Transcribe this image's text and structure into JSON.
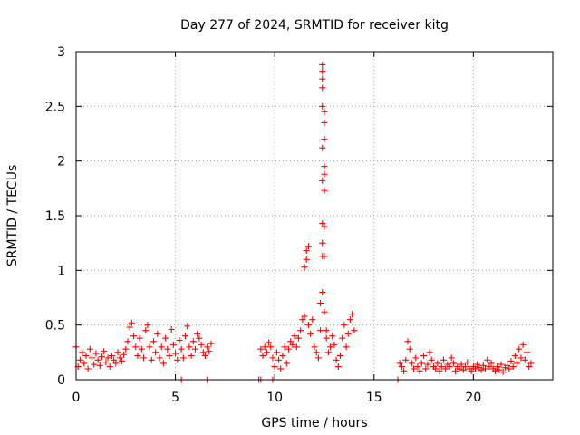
{
  "chart_data": {
    "type": "scatter",
    "title": "Day 277 of 2024, SRMTID for receiver kitg",
    "xlabel": "GPS time / hours",
    "ylabel": "SRMTID / TECUs",
    "xlim": [
      0,
      24
    ],
    "ylim": [
      0,
      3
    ],
    "xticks": [
      0,
      5,
      10,
      15,
      20
    ],
    "xtick_labels": [
      "0",
      "5",
      "10",
      "15",
      "20"
    ],
    "yticks": [
      0,
      0.5,
      1,
      1.5,
      2,
      2.5,
      3
    ],
    "ytick_labels": [
      "0",
      "0.5",
      "1",
      "1.5",
      "2",
      "2.5",
      "3"
    ],
    "grid": true,
    "marker": "+",
    "series": [
      {
        "name": "SRMTID",
        "color": "#ff0000",
        "points": [
          [
            0.0,
            0.3
          ],
          [
            0.1,
            0.12
          ],
          [
            0.2,
            0.18
          ],
          [
            0.3,
            0.25
          ],
          [
            0.4,
            0.15
          ],
          [
            0.5,
            0.22
          ],
          [
            0.6,
            0.1
          ],
          [
            0.7,
            0.28
          ],
          [
            0.8,
            0.2
          ],
          [
            0.9,
            0.14
          ],
          [
            1.0,
            0.24
          ],
          [
            1.1,
            0.18
          ],
          [
            1.2,
            0.13
          ],
          [
            1.3,
            0.21
          ],
          [
            1.4,
            0.26
          ],
          [
            1.5,
            0.16
          ],
          [
            1.6,
            0.2
          ],
          [
            1.7,
            0.12
          ],
          [
            1.8,
            0.22
          ],
          [
            1.9,
            0.18
          ],
          [
            2.0,
            0.15
          ],
          [
            2.1,
            0.25
          ],
          [
            2.2,
            0.2
          ],
          [
            2.3,
            0.17
          ],
          [
            2.4,
            0.23
          ],
          [
            2.5,
            0.28
          ],
          [
            2.6,
            0.35
          ],
          [
            2.7,
            0.48
          ],
          [
            2.8,
            0.52
          ],
          [
            2.9,
            0.4
          ],
          [
            3.0,
            0.3
          ],
          [
            3.1,
            0.22
          ],
          [
            3.2,
            0.38
          ],
          [
            3.3,
            0.28
          ],
          [
            3.4,
            0.2
          ],
          [
            3.5,
            0.45
          ],
          [
            3.6,
            0.5
          ],
          [
            3.7,
            0.3
          ],
          [
            3.8,
            0.18
          ],
          [
            3.9,
            0.35
          ],
          [
            4.0,
            0.25
          ],
          [
            4.1,
            0.42
          ],
          [
            4.2,
            0.2
          ],
          [
            4.3,
            0.3
          ],
          [
            4.4,
            0.15
          ],
          [
            4.5,
            0.38
          ],
          [
            4.6,
            0.28
          ],
          [
            4.7,
            0.22
          ],
          [
            4.8,
            0.46
          ],
          [
            4.9,
            0.32
          ],
          [
            5.0,
            0.24
          ],
          [
            5.1,
            0.18
          ],
          [
            5.2,
            0.36
          ],
          [
            5.3,
            0.28
          ],
          [
            5.4,
            0.2
          ],
          [
            5.5,
            0.4
          ],
          [
            5.6,
            0.49
          ],
          [
            5.7,
            0.3
          ],
          [
            5.8,
            0.22
          ],
          [
            5.9,
            0.35
          ],
          [
            6.0,
            0.28
          ],
          [
            6.1,
            0.42
          ],
          [
            6.2,
            0.38
          ],
          [
            6.3,
            0.32
          ],
          [
            6.4,
            0.25
          ],
          [
            6.5,
            0.22
          ],
          [
            6.6,
            0.3
          ],
          [
            6.7,
            0.26
          ],
          [
            6.8,
            0.33
          ],
          [
            9.3,
            0.28
          ],
          [
            9.4,
            0.22
          ],
          [
            9.5,
            0.3
          ],
          [
            9.6,
            0.25
          ],
          [
            9.7,
            0.34
          ],
          [
            9.8,
            0.3
          ],
          [
            9.9,
            0.2
          ],
          [
            10.0,
            0.12
          ],
          [
            10.1,
            0.25
          ],
          [
            10.2,
            0.18
          ],
          [
            10.3,
            0.1
          ],
          [
            10.4,
            0.22
          ],
          [
            10.5,
            0.3
          ],
          [
            10.6,
            0.15
          ],
          [
            10.7,
            0.28
          ],
          [
            10.8,
            0.35
          ],
          [
            10.9,
            0.32
          ],
          [
            11.0,
            0.4
          ],
          [
            11.1,
            0.3
          ],
          [
            11.2,
            0.38
          ],
          [
            11.3,
            0.45
          ],
          [
            11.4,
            0.55
          ],
          [
            11.5,
            0.58
          ],
          [
            11.5,
            1.03
          ],
          [
            11.6,
            1.1
          ],
          [
            11.6,
            1.18
          ],
          [
            11.7,
            1.22
          ],
          [
            11.7,
            0.5
          ],
          [
            11.8,
            0.42
          ],
          [
            11.9,
            0.55
          ],
          [
            12.0,
            0.3
          ],
          [
            12.1,
            0.25
          ],
          [
            12.2,
            0.2
          ],
          [
            12.3,
            0.45
          ],
          [
            12.3,
            0.7
          ],
          [
            12.4,
            0.8
          ],
          [
            12.4,
            2.88
          ],
          [
            12.4,
            2.82
          ],
          [
            12.4,
            2.75
          ],
          [
            12.4,
            2.67
          ],
          [
            12.4,
            2.5
          ],
          [
            12.5,
            2.45
          ],
          [
            12.5,
            2.35
          ],
          [
            12.5,
            2.2
          ],
          [
            12.4,
            2.12
          ],
          [
            12.5,
            1.95
          ],
          [
            12.5,
            1.88
          ],
          [
            12.4,
            1.82
          ],
          [
            12.5,
            1.73
          ],
          [
            12.4,
            1.43
          ],
          [
            12.5,
            1.4
          ],
          [
            12.4,
            1.25
          ],
          [
            12.5,
            1.13
          ],
          [
            12.4,
            1.13
          ],
          [
            12.5,
            0.62
          ],
          [
            12.6,
            0.45
          ],
          [
            12.6,
            0.38
          ],
          [
            12.7,
            0.25
          ],
          [
            12.8,
            0.3
          ],
          [
            12.9,
            0.4
          ],
          [
            13.0,
            0.32
          ],
          [
            13.1,
            0.18
          ],
          [
            13.2,
            0.12
          ],
          [
            13.3,
            0.22
          ],
          [
            13.4,
            0.38
          ],
          [
            13.5,
            0.5
          ],
          [
            13.6,
            0.3
          ],
          [
            13.7,
            0.42
          ],
          [
            13.8,
            0.55
          ],
          [
            13.9,
            0.6
          ],
          [
            14.0,
            0.45
          ],
          [
            16.3,
            0.15
          ],
          [
            16.4,
            0.12
          ],
          [
            16.5,
            0.08
          ],
          [
            16.6,
            0.18
          ],
          [
            16.7,
            0.35
          ],
          [
            16.8,
            0.28
          ],
          [
            16.9,
            0.15
          ],
          [
            17.0,
            0.1
          ],
          [
            17.1,
            0.2
          ],
          [
            17.2,
            0.12
          ],
          [
            17.3,
            0.08
          ],
          [
            17.4,
            0.15
          ],
          [
            17.5,
            0.22
          ],
          [
            17.6,
            0.1
          ],
          [
            17.7,
            0.14
          ],
          [
            17.8,
            0.25
          ],
          [
            17.9,
            0.18
          ],
          [
            18.0,
            0.12
          ],
          [
            18.1,
            0.1
          ],
          [
            18.2,
            0.15
          ],
          [
            18.3,
            0.08
          ],
          [
            18.4,
            0.12
          ],
          [
            18.5,
            0.18
          ],
          [
            18.6,
            0.1
          ],
          [
            18.7,
            0.14
          ],
          [
            18.8,
            0.12
          ],
          [
            18.9,
            0.2
          ],
          [
            19.0,
            0.15
          ],
          [
            19.1,
            0.08
          ],
          [
            19.2,
            0.12
          ],
          [
            19.3,
            0.1
          ],
          [
            19.4,
            0.14
          ],
          [
            19.5,
            0.09
          ],
          [
            19.6,
            0.12
          ],
          [
            19.7,
            0.16
          ],
          [
            19.8,
            0.1
          ],
          [
            19.9,
            0.08
          ],
          [
            20.0,
            0.12
          ],
          [
            20.1,
            0.1
          ],
          [
            20.2,
            0.14
          ],
          [
            20.3,
            0.11
          ],
          [
            20.4,
            0.09
          ],
          [
            20.5,
            0.13
          ],
          [
            20.6,
            0.1
          ],
          [
            20.7,
            0.18
          ],
          [
            20.8,
            0.12
          ],
          [
            20.9,
            0.15
          ],
          [
            21.0,
            0.1
          ],
          [
            21.1,
            0.08
          ],
          [
            21.2,
            0.12
          ],
          [
            21.3,
            0.09
          ],
          [
            21.4,
            0.14
          ],
          [
            21.5,
            0.07
          ],
          [
            21.6,
            0.11
          ],
          [
            21.7,
            0.13
          ],
          [
            21.8,
            0.1
          ],
          [
            21.9,
            0.17
          ],
          [
            22.0,
            0.12
          ],
          [
            22.1,
            0.22
          ],
          [
            22.2,
            0.15
          ],
          [
            22.3,
            0.28
          ],
          [
            22.4,
            0.2
          ],
          [
            22.5,
            0.32
          ],
          [
            22.6,
            0.18
          ],
          [
            22.7,
            0.25
          ],
          [
            22.8,
            0.12
          ],
          [
            22.9,
            0.15
          ],
          [
            5.3,
            0.0
          ],
          [
            6.6,
            0.0
          ],
          [
            9.2,
            0.0
          ],
          [
            9.3,
            0.0
          ],
          [
            9.9,
            0.0
          ],
          [
            16.2,
            0.0
          ]
        ]
      }
    ]
  }
}
